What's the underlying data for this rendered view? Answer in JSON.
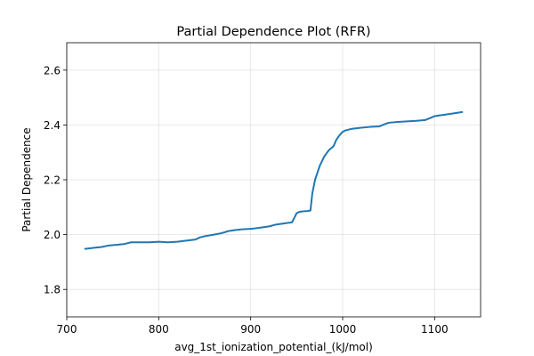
{
  "chart_data": {
    "type": "line",
    "title": "Partial Dependence Plot (RFR)",
    "xlabel": "avg_1st_ionization_potential_(kJ/mol)",
    "ylabel": "Partial Dependence",
    "xlim": [
      700,
      1150
    ],
    "ylim": [
      1.7,
      2.7
    ],
    "xticks": [
      700,
      800,
      900,
      1000,
      1100
    ],
    "yticks": [
      1.8,
      2.0,
      2.2,
      2.4,
      2.6
    ],
    "xtick_labels": [
      "700",
      "800",
      "900",
      "1000",
      "1100"
    ],
    "ytick_labels": [
      "1.8",
      "2.0",
      "2.2",
      "2.4",
      "2.6"
    ],
    "grid": true,
    "color": "#1f77b4",
    "series": [
      {
        "x": [
          720,
          730,
          738,
          745,
          755,
          763,
          770,
          780,
          790,
          800,
          810,
          820,
          830,
          840,
          845,
          850,
          860,
          868,
          876,
          884,
          893,
          903,
          910,
          920,
          928,
          935,
          945,
          950,
          953,
          958,
          962,
          965,
          967,
          970,
          975,
          980,
          985,
          990,
          993,
          996,
          1000,
          1003,
          1010,
          1020,
          1030,
          1040,
          1045,
          1050,
          1060,
          1070,
          1080,
          1090,
          1095,
          1100,
          1110,
          1120,
          1130
        ],
        "y": [
          1.948,
          1.952,
          1.955,
          1.96,
          1.963,
          1.966,
          1.972,
          1.972,
          1.972,
          1.974,
          1.972,
          1.974,
          1.978,
          1.982,
          1.99,
          1.994,
          2.0,
          2.005,
          2.013,
          2.017,
          2.02,
          2.022,
          2.025,
          2.03,
          2.037,
          2.04,
          2.045,
          2.078,
          2.083,
          2.085,
          2.086,
          2.088,
          2.15,
          2.2,
          2.25,
          2.285,
          2.308,
          2.322,
          2.345,
          2.36,
          2.375,
          2.38,
          2.386,
          2.39,
          2.393,
          2.395,
          2.402,
          2.408,
          2.411,
          2.413,
          2.415,
          2.418,
          2.425,
          2.432,
          2.437,
          2.442,
          2.447
        ]
      }
    ]
  }
}
